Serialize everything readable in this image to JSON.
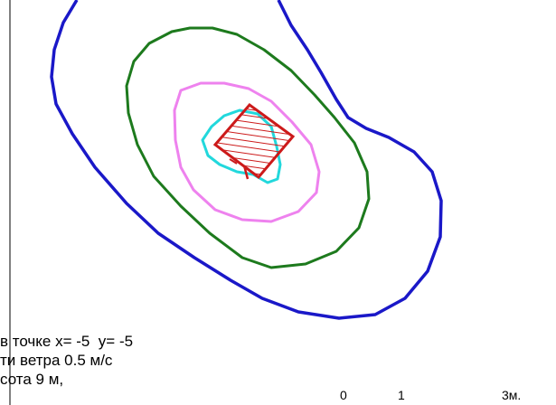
{
  "colors": {
    "background": "#ffffff",
    "frame": "#000000",
    "contour_outer": "#1a18c8",
    "contour_second": "#1d7a1d",
    "contour_third": "#ee82ee",
    "contour_inner": "#22d8dc",
    "source_building": "#cc1a1a",
    "text": "#000000"
  },
  "caption": {
    "line1": "в точке x= -5  y= -5",
    "line2": "ти ветра 0.5 м/с",
    "line3": "сота 9 м,"
  },
  "scale": {
    "tick_0": "0",
    "tick_1": "1",
    "tick_3": "3м."
  }
}
